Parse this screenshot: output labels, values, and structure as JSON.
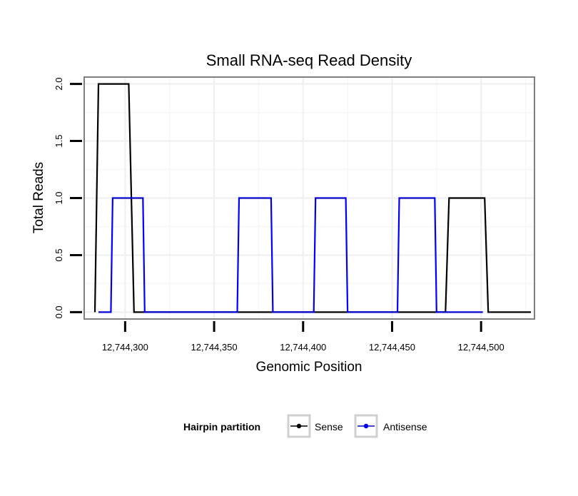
{
  "chart_data": {
    "type": "line",
    "title": "Small RNA-seq Read Density",
    "xlabel": "Genomic Position",
    "ylabel": "Total Reads",
    "xlim": [
      12744277,
      12744530
    ],
    "ylim": [
      -0.06,
      2.06
    ],
    "x_ticks": [
      12744300,
      12744350,
      12744400,
      12744450,
      12744500
    ],
    "x_tick_labels": [
      "12,744,300",
      "12,744,350",
      "12,744,400",
      "12,744,450",
      "12,744,500"
    ],
    "y_ticks": [
      0.0,
      0.5,
      1.0,
      1.5,
      2.0
    ],
    "y_tick_labels": [
      "0.0",
      "0.5",
      "1.0",
      "1.5",
      "2.0"
    ],
    "grid": true,
    "legend": {
      "title": "Hairpin partition",
      "position": "bottom",
      "entries": [
        "Sense",
        "Antisense"
      ]
    },
    "series": [
      {
        "name": "Sense",
        "color": "#000000",
        "x": [
          12744283,
          12744285,
          12744302,
          12744305,
          12744480,
          12744482,
          12744502,
          12744504,
          12744528
        ],
        "y": [
          0,
          2,
          2,
          0,
          0,
          1,
          1,
          0,
          0
        ]
      },
      {
        "name": "Antisense",
        "color": "#0000ff",
        "x": [
          12744285,
          12744292,
          12744293,
          12744310,
          12744311,
          12744363,
          12744364,
          12744382,
          12744383,
          12744406,
          12744407,
          12744424,
          12744425,
          12744453,
          12744454,
          12744474,
          12744475,
          12744501
        ],
        "y": [
          0,
          0,
          1,
          1,
          0,
          0,
          1,
          1,
          0,
          0,
          1,
          1,
          0,
          0,
          1,
          1,
          0,
          0
        ]
      }
    ]
  }
}
